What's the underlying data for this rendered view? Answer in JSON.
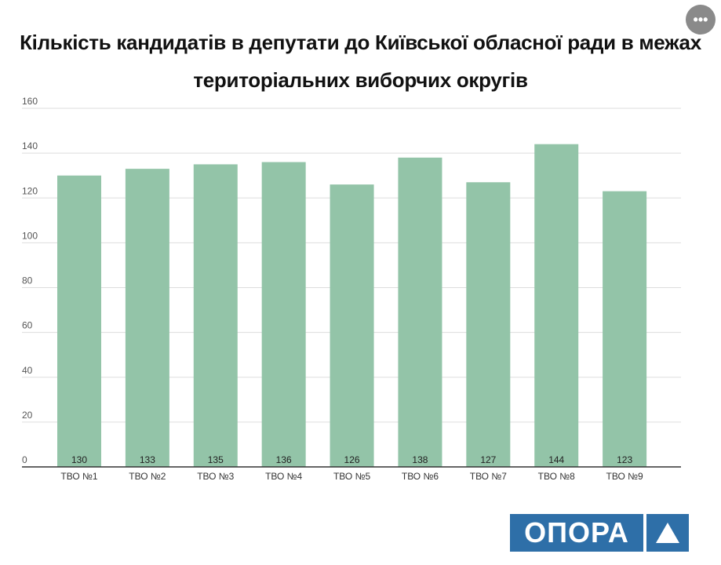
{
  "menu": {
    "icon": "more-horizontal-icon",
    "glyph": "•••"
  },
  "logo": {
    "text": "ОПОРА",
    "icon": "triangle-up-icon",
    "color": "#2e6fa8"
  },
  "chart_data": {
    "type": "bar",
    "title": "Кількість кандидатів в депутати до Київської обласної ради в межах територіальних виборчих округів",
    "xlabel": "",
    "ylabel": "",
    "categories": [
      "ТВО №1",
      "ТВО №2",
      "ТВО №3",
      "ТВО №4",
      "ТВО №5",
      "ТВО №6",
      "ТВО №7",
      "ТВО №8",
      "ТВО №9"
    ],
    "values": [
      130,
      133,
      135,
      136,
      126,
      138,
      127,
      144,
      123
    ],
    "ylim": [
      0,
      160
    ],
    "yticks": [
      0,
      20,
      40,
      60,
      80,
      100,
      120,
      140,
      160
    ],
    "grid": true,
    "legend": "none",
    "bar_color": "#93c4a8",
    "data_labels": true
  }
}
